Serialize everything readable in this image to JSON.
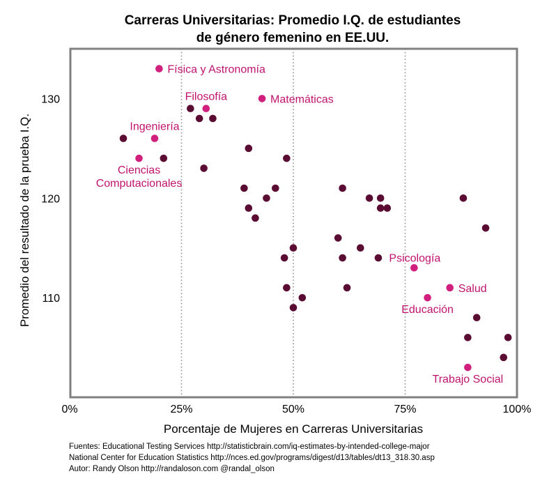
{
  "chart_data": {
    "type": "scatter",
    "title_lines": [
      "Carreras Universitarias: Promedio I.Q. de estudiantes",
      "de género femenino en EE.UU."
    ],
    "xlabel": "Porcentaje de Mujeres en Carreras Universitarias",
    "ylabel": "Promedio del resultado de la prueba I.Q.",
    "xlim": [
      0,
      100
    ],
    "ylim": [
      100,
      135
    ],
    "x_ticks": [
      {
        "value": 0,
        "label": "0%"
      },
      {
        "value": 25,
        "label": "25%"
      },
      {
        "value": 50,
        "label": "50%"
      },
      {
        "value": 75,
        "label": "75%"
      },
      {
        "value": 100,
        "label": "100%"
      }
    ],
    "y_ticks": [
      {
        "value": 110,
        "label": "110"
      },
      {
        "value": 120,
        "label": "120"
      },
      {
        "value": 130,
        "label": "130"
      }
    ],
    "vertical_gridlines": [
      25,
      50,
      75
    ],
    "colors": {
      "default_point": "#5a0c33",
      "highlight_point": "#d11f7d",
      "highlight_text": "#c0136e",
      "frame": "#808080",
      "grid": "#909090"
    },
    "series": [
      {
        "values": [
          {
            "x": 12,
            "y": 126
          },
          {
            "x": 21,
            "y": 124
          },
          {
            "x": 27,
            "y": 129
          },
          {
            "x": 29,
            "y": 128
          },
          {
            "x": 30,
            "y": 123
          },
          {
            "x": 32,
            "y": 128
          },
          {
            "x": 39,
            "y": 121
          },
          {
            "x": 40,
            "y": 125
          },
          {
            "x": 40,
            "y": 119
          },
          {
            "x": 41.5,
            "y": 118
          },
          {
            "x": 44,
            "y": 120
          },
          {
            "x": 46,
            "y": 121
          },
          {
            "x": 48,
            "y": 114
          },
          {
            "x": 48.5,
            "y": 124
          },
          {
            "x": 48.5,
            "y": 111
          },
          {
            "x": 50,
            "y": 115
          },
          {
            "x": 50,
            "y": 109
          },
          {
            "x": 52,
            "y": 110
          },
          {
            "x": 60,
            "y": 116
          },
          {
            "x": 61,
            "y": 121
          },
          {
            "x": 61,
            "y": 114
          },
          {
            "x": 62,
            "y": 111
          },
          {
            "x": 65,
            "y": 115
          },
          {
            "x": 67,
            "y": 120
          },
          {
            "x": 69,
            "y": 114
          },
          {
            "x": 69.5,
            "y": 120
          },
          {
            "x": 69.5,
            "y": 119
          },
          {
            "x": 71,
            "y": 119
          },
          {
            "x": 88,
            "y": 120
          },
          {
            "x": 89,
            "y": 106
          },
          {
            "x": 91,
            "y": 108
          },
          {
            "x": 93,
            "y": 117
          },
          {
            "x": 97,
            "y": 104
          },
          {
            "x": 98,
            "y": 106
          }
        ]
      },
      {
        "highlight": true,
        "values": [
          {
            "x": 20,
            "y": 133,
            "label": "Física y Astronomía",
            "anchor": "right"
          },
          {
            "x": 30.5,
            "y": 129,
            "label": "Filosofía",
            "anchor": "above"
          },
          {
            "x": 43,
            "y": 130,
            "label": "Matemáticas",
            "anchor": "right"
          },
          {
            "x": 19,
            "y": 126,
            "label": "Ingeniería",
            "anchor": "above"
          },
          {
            "x": 15.5,
            "y": 124,
            "label_lines": [
              "Ciencias",
              "Computacionales"
            ],
            "anchor": "below"
          },
          {
            "x": 77,
            "y": 113,
            "label": "Psicología",
            "anchor": "above-left"
          },
          {
            "x": 85,
            "y": 111,
            "label": "Salud",
            "anchor": "right"
          },
          {
            "x": 80,
            "y": 110,
            "label": "Educación",
            "anchor": "below"
          },
          {
            "x": 89,
            "y": 103,
            "label": "Trabajo Social",
            "anchor": "below"
          }
        ]
      }
    ]
  },
  "footer": {
    "sources": [
      "Fuentes: Educational Testing Services http://statisticbrain.com/iq-estimates-by-intended-college-major",
      "National Center for Education Statistics http://nces.ed.gov/programs/digest/d13/tables/dt13_318.30.asp",
      "Autor: Randy Olson http://randaloson.com @randal_olson"
    ]
  }
}
